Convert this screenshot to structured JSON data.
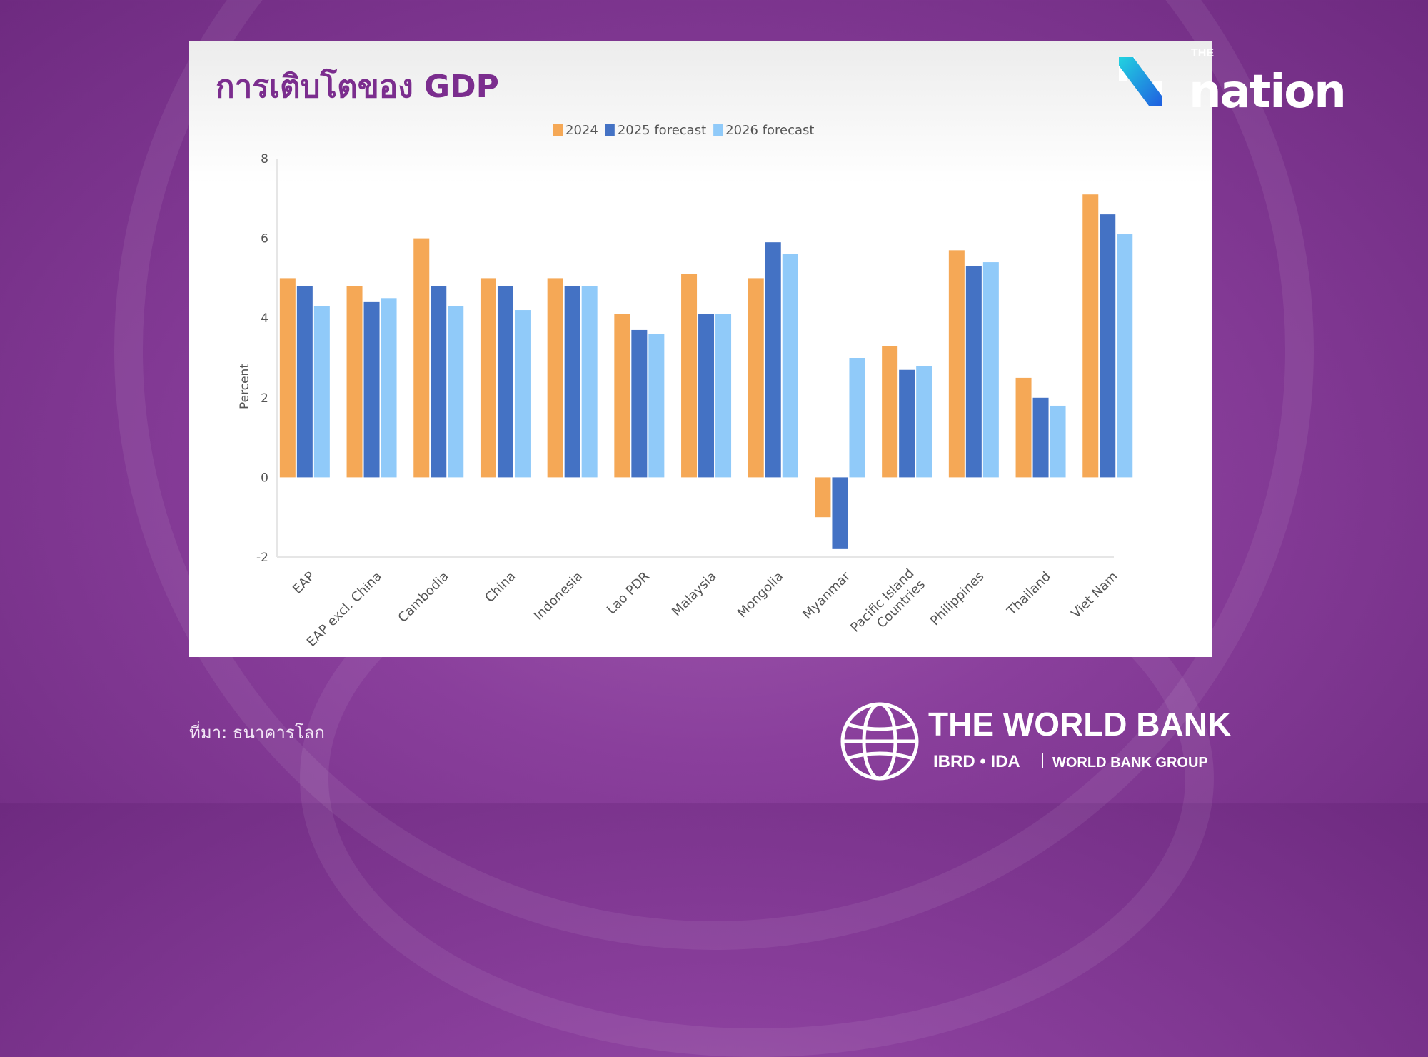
{
  "title": "การเติบโตของ GDP",
  "logo": {
    "small": "THE",
    "main": "nation"
  },
  "source": "ที่มา: ธนาคารโลก",
  "worldbank": {
    "name": "THE WORLD BANK",
    "sub1": "IBRD • IDA",
    "sub2": "WORLD BANK GROUP"
  },
  "chart_data": {
    "type": "bar",
    "title": "",
    "xlabel": "",
    "ylabel": "Percent",
    "ylim": [
      -2,
      8
    ],
    "yticks": [
      -2,
      0,
      2,
      4,
      6,
      8
    ],
    "grid": false,
    "legend": "top-center",
    "categories": [
      "EAP",
      "EAP excl. China",
      "Cambodia",
      "China",
      "Indonesia",
      "Lao PDR",
      "Malaysia",
      "Mongolia",
      "Myanmar",
      "Pacific Island Countries",
      "Philippines",
      "Thailand",
      "Viet Nam"
    ],
    "series": [
      {
        "name": "2024",
        "color": "#f5a856",
        "values": [
          5.0,
          4.8,
          6.0,
          5.0,
          5.0,
          4.1,
          5.1,
          5.0,
          -1.0,
          3.3,
          5.7,
          2.5,
          7.1
        ]
      },
      {
        "name": "2025 forecast",
        "color": "#4472c4",
        "values": [
          4.8,
          4.4,
          4.8,
          4.8,
          4.8,
          3.7,
          4.1,
          5.9,
          -1.8,
          2.7,
          5.3,
          2.0,
          6.6
        ]
      },
      {
        "name": "2026 forecast",
        "color": "#90caf9",
        "values": [
          4.3,
          4.5,
          4.3,
          4.2,
          4.8,
          3.6,
          4.1,
          5.6,
          3.0,
          2.8,
          5.4,
          1.8,
          6.1
        ]
      }
    ]
  }
}
